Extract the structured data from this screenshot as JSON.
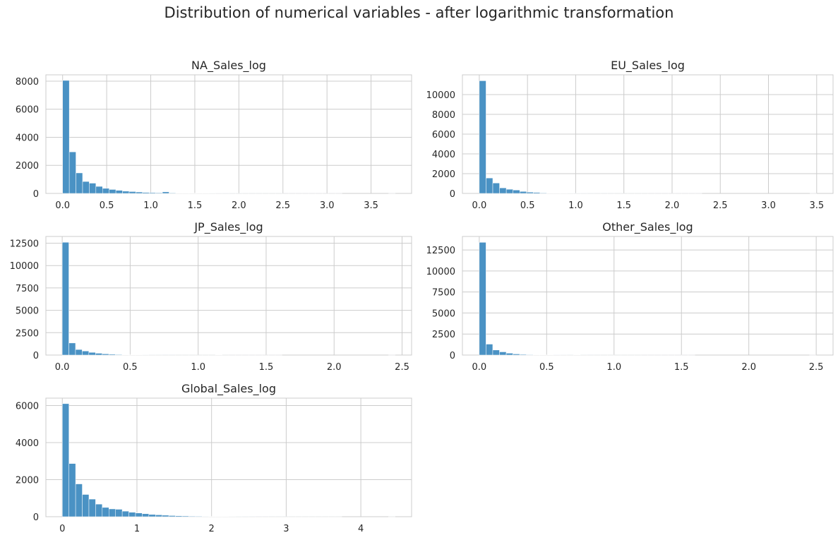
{
  "figure": {
    "title": "Distribution of numerical variables - after logarithmic transformation"
  },
  "colors": {
    "bar": "#4a92c4",
    "grid": "#cccccc",
    "text": "#262626"
  },
  "chart_data": [
    {
      "type": "bar",
      "title": "NA_Sales_log",
      "bin_start": 0,
      "bin_width": 0.0755,
      "values": [
        8050,
        2960,
        1460,
        850,
        730,
        500,
        360,
        280,
        220,
        160,
        130,
        100,
        70,
        55,
        45,
        110,
        35,
        25,
        20,
        18,
        15,
        12,
        10,
        8,
        7,
        6,
        5,
        4,
        3,
        3,
        2,
        2,
        2,
        1,
        1,
        1,
        1,
        1,
        1,
        1,
        1,
        1,
        0,
        0,
        0,
        0,
        0,
        0,
        0,
        1
      ],
      "xlim": [
        -0.19,
        3.96
      ],
      "ylim": [
        0,
        8450
      ],
      "xticks": [
        0,
        0.5,
        1,
        1.5,
        2,
        2.5,
        3,
        3.5
      ],
      "xtick_labels": [
        "0.0",
        "0.5",
        "1.0",
        "1.5",
        "2.0",
        "2.5",
        "3.0",
        "3.5"
      ],
      "yticks": [
        0,
        2000,
        4000,
        6000,
        8000
      ],
      "ytick_labels": [
        "0",
        "2000",
        "4000",
        "6000",
        "8000"
      ],
      "grid": true
    },
    {
      "type": "bar",
      "title": "EU_Sales_log",
      "bin_start": 0,
      "bin_width": 0.07,
      "values": [
        11400,
        1560,
        1050,
        560,
        420,
        340,
        200,
        130,
        100,
        50,
        35,
        25,
        20,
        15,
        12,
        10,
        8,
        6,
        5,
        4,
        3,
        3,
        2,
        2,
        2,
        1,
        1,
        1,
        1,
        1,
        1,
        1,
        1,
        0,
        0,
        0,
        0,
        0,
        0,
        0,
        0,
        0,
        0,
        0,
        0,
        0,
        0,
        0,
        0,
        1
      ],
      "xlim": [
        -0.175,
        3.67
      ],
      "ylim": [
        0,
        12000
      ],
      "xticks": [
        0,
        0.5,
        1,
        1.5,
        2,
        2.5,
        3,
        3.5
      ],
      "xtick_labels": [
        "0.0",
        "0.5",
        "1.0",
        "1.5",
        "2.0",
        "2.5",
        "3.0",
        "3.5"
      ],
      "yticks": [
        0,
        2000,
        4000,
        6000,
        8000,
        10000
      ],
      "ytick_labels": [
        "0",
        "2000",
        "4000",
        "6000",
        "8000",
        "10000"
      ],
      "grid": true
    },
    {
      "type": "bar",
      "title": "JP_Sales_log",
      "bin_start": 0,
      "bin_width": 0.049,
      "values": [
        12600,
        1350,
        620,
        450,
        300,
        200,
        130,
        90,
        60,
        40,
        30,
        20,
        15,
        10,
        8,
        6,
        5,
        4,
        3,
        3,
        2,
        2,
        2,
        40,
        2,
        1,
        1,
        1,
        1,
        1,
        1,
        1,
        1,
        0,
        0,
        0,
        0,
        0,
        0,
        0,
        0,
        0,
        0,
        0,
        0,
        0,
        0,
        0,
        0,
        1
      ],
      "xlim": [
        -0.12,
        2.57
      ],
      "ylim": [
        0,
        13250
      ],
      "xticks": [
        0,
        0.5,
        1,
        1.5,
        2,
        2.5
      ],
      "xtick_labels": [
        "0.0",
        "0.5",
        "1.0",
        "1.5",
        "2.0",
        "2.5"
      ],
      "yticks": [
        0,
        2500,
        5000,
        7500,
        10000,
        12500
      ],
      "ytick_labels": [
        "0",
        "2500",
        "5000",
        "7500",
        "10000",
        "12500"
      ],
      "grid": true
    },
    {
      "type": "bar",
      "title": "Other_Sales_log",
      "bin_start": 0,
      "bin_width": 0.05,
      "values": [
        13400,
        1300,
        600,
        380,
        220,
        130,
        80,
        50,
        35,
        25,
        20,
        15,
        12,
        10,
        30,
        8,
        6,
        5,
        4,
        3,
        3,
        2,
        2,
        2,
        1,
        1,
        1,
        1,
        1,
        1,
        1,
        1,
        0,
        0,
        0,
        0,
        0,
        0,
        0,
        0,
        0,
        0,
        0,
        0,
        0,
        0,
        0,
        0,
        0,
        1
      ],
      "xlim": [
        -0.125,
        2.625
      ],
      "ylim": [
        0,
        14100
      ],
      "xticks": [
        0,
        0.5,
        1,
        1.5,
        2,
        2.5
      ],
      "xtick_labels": [
        "0.0",
        "0.5",
        "1.0",
        "1.5",
        "2.0",
        "2.5"
      ],
      "yticks": [
        0,
        2500,
        5000,
        7500,
        10000,
        12500
      ],
      "ytick_labels": [
        "0",
        "2500",
        "5000",
        "7500",
        "10000",
        "12500"
      ],
      "grid": true
    },
    {
      "type": "bar",
      "title": "Global_Sales_log",
      "bin_start": 0,
      "bin_width": 0.0892,
      "values": [
        6100,
        2870,
        1770,
        1200,
        950,
        680,
        500,
        420,
        400,
        300,
        240,
        200,
        160,
        120,
        100,
        80,
        60,
        50,
        40,
        30,
        25,
        20,
        15,
        12,
        10,
        8,
        6,
        5,
        4,
        3,
        3,
        2,
        2,
        2,
        1,
        1,
        1,
        1,
        1,
        1,
        1,
        1,
        0,
        0,
        0,
        0,
        0,
        0,
        0,
        1
      ],
      "xlim": [
        -0.22,
        4.68
      ],
      "ylim": [
        0,
        6400
      ],
      "xticks": [
        0,
        1,
        2,
        3,
        4
      ],
      "xtick_labels": [
        "0",
        "1",
        "2",
        "3",
        "4"
      ],
      "yticks": [
        0,
        2000,
        4000,
        6000
      ],
      "ytick_labels": [
        "0",
        "2000",
        "4000",
        "6000"
      ],
      "grid": true
    }
  ]
}
